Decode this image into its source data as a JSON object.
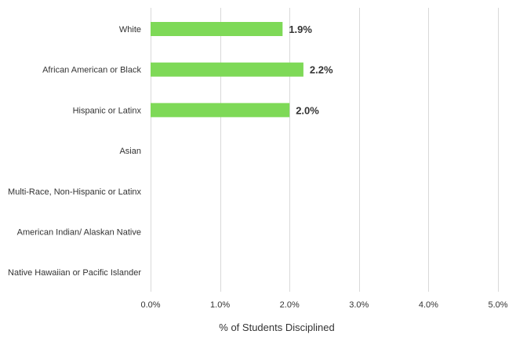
{
  "chart_data": {
    "type": "bar",
    "orientation": "horizontal",
    "categories": [
      "White",
      "African American or Black",
      "Hispanic or Latinx",
      "Asian",
      "Multi-Race, Non-Hispanic or Latinx",
      "American Indian/ Alaskan Native",
      "Native Hawaiian or Pacific Islander"
    ],
    "values": [
      1.9,
      2.2,
      2.0,
      null,
      null,
      null,
      null
    ],
    "data_labels": [
      "1.9%",
      "2.2%",
      "2.0%",
      "",
      "",
      "",
      ""
    ],
    "xlabel": "% of Students Disciplined",
    "ylabel": "",
    "xlim": [
      0,
      5
    ],
    "ticks": [
      0,
      1,
      2,
      3,
      4,
      5
    ],
    "tick_labels": [
      "0.0%",
      "1.0%",
      "2.0%",
      "3.0%",
      "4.0%",
      "5.0%"
    ],
    "grid": "vertical",
    "legend": "none",
    "colors": {
      "bar": "#7ed957"
    }
  }
}
